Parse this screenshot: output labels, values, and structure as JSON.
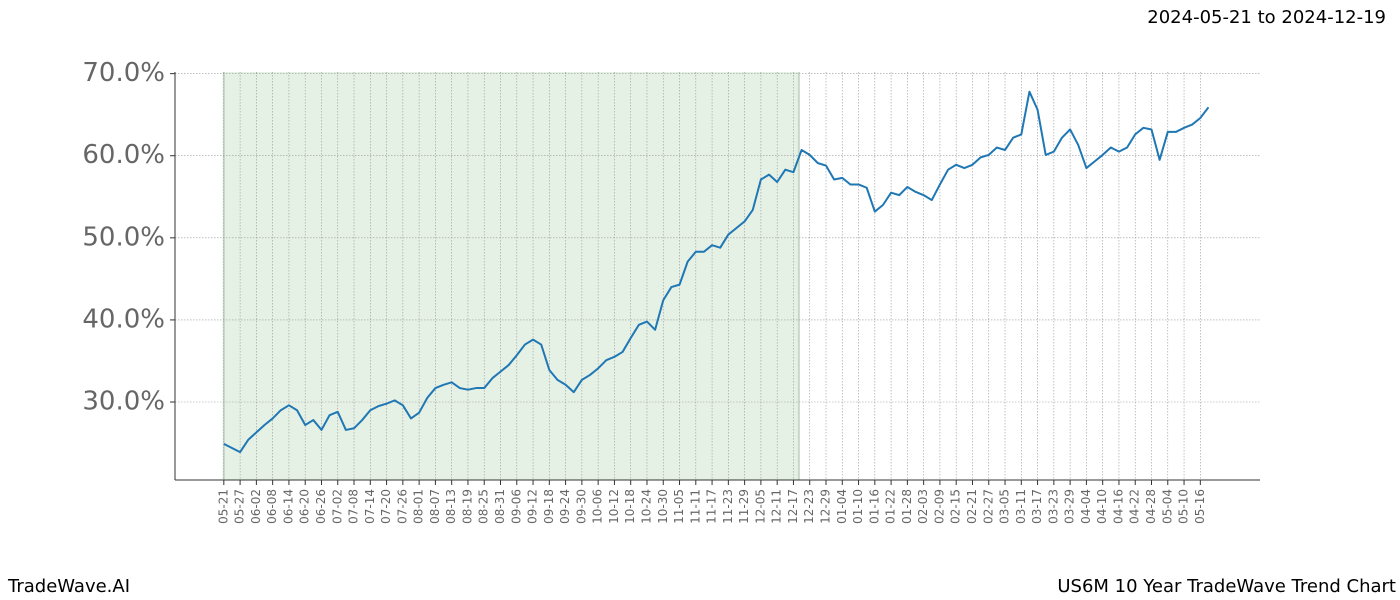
{
  "header": {
    "date_range": "2024-05-21 to 2024-12-19"
  },
  "footer": {
    "left": "TradeWave.AI",
    "right": "US6M 10 Year TradeWave Trend Chart"
  },
  "chart_data": {
    "type": "line",
    "series": [
      {
        "color": "#1f77b4",
        "x": [
          0,
          3,
          6,
          9,
          12,
          15,
          18,
          21,
          24,
          27,
          30,
          33,
          36,
          39,
          42,
          45,
          48,
          51,
          54,
          57,
          60,
          63,
          66,
          69,
          72,
          75,
          78,
          81,
          84,
          87,
          90,
          93,
          96,
          99,
          102,
          105,
          108,
          111,
          114,
          117,
          120,
          123,
          126,
          129,
          132,
          135,
          138,
          141,
          144,
          147,
          150,
          153,
          156,
          159,
          162,
          165,
          168,
          171,
          174,
          177,
          180,
          183,
          186,
          189,
          192,
          195,
          198,
          201,
          204,
          207,
          210,
          213,
          216,
          219,
          222,
          225,
          228,
          231,
          234,
          237,
          240,
          243,
          246,
          249,
          252,
          255,
          258,
          261,
          264,
          267,
          270,
          273,
          276,
          279,
          282,
          285,
          288,
          291,
          294,
          297,
          300,
          303,
          306,
          309,
          312,
          315,
          318,
          321,
          324,
          327,
          330,
          333,
          336,
          339,
          342,
          345,
          348,
          351,
          354,
          357,
          360,
          363
        ],
        "values": [
          24.9,
          24.4,
          23.9,
          25.4,
          26.3,
          27.2,
          28.0,
          29.0,
          29.6,
          29.0,
          27.2,
          27.8,
          26.6,
          28.4,
          28.8,
          26.6,
          26.8,
          27.8,
          29.0,
          29.5,
          29.8,
          30.2,
          29.6,
          28.0,
          28.7,
          30.5,
          31.7,
          32.1,
          32.4,
          31.7,
          31.5,
          31.7,
          31.7,
          32.9,
          33.7,
          34.5,
          35.7,
          37.0,
          37.6,
          37.0,
          33.9,
          32.7,
          32.1,
          31.2,
          32.7,
          33.3,
          34.1,
          35.1,
          35.5,
          36.1,
          37.8,
          39.4,
          39.8,
          38.8,
          42.4,
          44.0,
          44.3,
          47.1,
          48.3,
          48.3,
          49.1,
          48.8,
          50.4,
          51.2,
          52.0,
          53.4,
          57.1,
          57.7,
          56.8,
          58.3,
          58.0,
          60.7,
          60.1,
          59.1,
          58.8,
          57.1,
          57.3,
          56.5,
          56.5,
          56.1,
          53.2,
          54.0,
          55.5,
          55.2,
          56.2,
          55.6,
          55.2,
          54.6,
          56.5,
          58.3,
          58.9,
          58.5,
          58.9,
          59.8,
          60.1,
          61.0,
          60.7,
          62.2,
          62.6,
          67.8,
          65.6,
          60.1,
          60.5,
          62.2,
          63.2,
          61.3,
          58.5,
          59.3,
          60.1,
          61.0,
          60.5,
          61.0,
          62.6,
          63.4,
          63.2,
          59.5,
          62.9,
          62.9,
          63.4,
          63.8,
          64.6,
          65.9
        ]
      }
    ],
    "highlight_range": [
      0,
      212
    ],
    "highlight_color": "#e6f1e6",
    "xlim": [
      -18,
      382
    ],
    "ylim": [
      20.5,
      70.2
    ],
    "yticks": [
      {
        "value": 30,
        "label": "30.0%"
      },
      {
        "value": 40,
        "label": "40.0%"
      },
      {
        "value": 50,
        "label": "50.0%"
      },
      {
        "value": 60,
        "label": "60.0%"
      },
      {
        "value": 70,
        "label": "70.0%"
      }
    ],
    "xticks": [
      {
        "value": 0,
        "label": "05-21"
      },
      {
        "value": 6,
        "label": "05-27"
      },
      {
        "value": 12,
        "label": "06-02"
      },
      {
        "value": 18,
        "label": "06-08"
      },
      {
        "value": 24,
        "label": "06-14"
      },
      {
        "value": 30,
        "label": "06-20"
      },
      {
        "value": 36,
        "label": "06-26"
      },
      {
        "value": 42,
        "label": "07-02"
      },
      {
        "value": 48,
        "label": "07-08"
      },
      {
        "value": 54,
        "label": "07-14"
      },
      {
        "value": 60,
        "label": "07-20"
      },
      {
        "value": 66,
        "label": "07-26"
      },
      {
        "value": 72,
        "label": "08-01"
      },
      {
        "value": 78,
        "label": "08-07"
      },
      {
        "value": 84,
        "label": "08-13"
      },
      {
        "value": 90,
        "label": "08-19"
      },
      {
        "value": 96,
        "label": "08-25"
      },
      {
        "value": 102,
        "label": "08-31"
      },
      {
        "value": 108,
        "label": "09-06"
      },
      {
        "value": 114,
        "label": "09-12"
      },
      {
        "value": 120,
        "label": "09-18"
      },
      {
        "value": 126,
        "label": "09-24"
      },
      {
        "value": 132,
        "label": "09-30"
      },
      {
        "value": 138,
        "label": "10-06"
      },
      {
        "value": 144,
        "label": "10-12"
      },
      {
        "value": 150,
        "label": "10-18"
      },
      {
        "value": 156,
        "label": "10-24"
      },
      {
        "value": 162,
        "label": "10-30"
      },
      {
        "value": 168,
        "label": "11-05"
      },
      {
        "value": 174,
        "label": "11-11"
      },
      {
        "value": 180,
        "label": "11-17"
      },
      {
        "value": 186,
        "label": "11-23"
      },
      {
        "value": 192,
        "label": "11-29"
      },
      {
        "value": 198,
        "label": "12-05"
      },
      {
        "value": 204,
        "label": "12-11"
      },
      {
        "value": 210,
        "label": "12-17"
      },
      {
        "value": 216,
        "label": "12-23"
      },
      {
        "value": 222,
        "label": "12-29"
      },
      {
        "value": 228,
        "label": "01-04"
      },
      {
        "value": 234,
        "label": "01-10"
      },
      {
        "value": 240,
        "label": "01-16"
      },
      {
        "value": 246,
        "label": "01-22"
      },
      {
        "value": 252,
        "label": "01-28"
      },
      {
        "value": 258,
        "label": "02-03"
      },
      {
        "value": 264,
        "label": "02-09"
      },
      {
        "value": 270,
        "label": "02-15"
      },
      {
        "value": 276,
        "label": "02-21"
      },
      {
        "value": 282,
        "label": "02-27"
      },
      {
        "value": 288,
        "label": "03-05"
      },
      {
        "value": 294,
        "label": "03-11"
      },
      {
        "value": 300,
        "label": "03-17"
      },
      {
        "value": 306,
        "label": "03-23"
      },
      {
        "value": 312,
        "label": "03-29"
      },
      {
        "value": 318,
        "label": "04-04"
      },
      {
        "value": 324,
        "label": "04-10"
      },
      {
        "value": 330,
        "label": "04-16"
      },
      {
        "value": 336,
        "label": "04-22"
      },
      {
        "value": 342,
        "label": "04-28"
      },
      {
        "value": 348,
        "label": "05-04"
      },
      {
        "value": 354,
        "label": "05-10"
      },
      {
        "value": 360,
        "label": "05-16"
      }
    ],
    "grid": true
  }
}
